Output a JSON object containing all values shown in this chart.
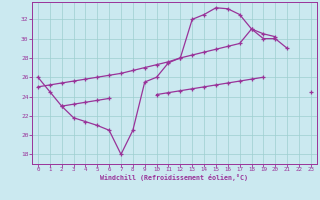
{
  "bg_color": "#cbe9f0",
  "grid_color": "#9ecfcf",
  "line_color": "#993399",
  "xlabel": "Windchill (Refroidissement éolien,°C)",
  "yticks": [
    18,
    20,
    22,
    24,
    26,
    28,
    30,
    32
  ],
  "xlim": [
    -0.5,
    23.5
  ],
  "ylim": [
    17.0,
    33.8
  ],
  "wc_main": [
    26.0,
    24.5,
    23.0,
    21.8,
    21.4,
    21.0,
    20.5,
    18.0,
    20.5,
    25.5,
    26.0,
    27.5,
    28.0,
    32.0,
    32.5,
    33.2,
    33.1,
    32.5,
    31.0,
    30.0,
    30.0,
    29.0,
    null,
    null
  ],
  "wc_upper": [
    25.0,
    25.2,
    25.4,
    25.6,
    25.8,
    26.0,
    26.2,
    26.4,
    26.7,
    27.0,
    27.3,
    27.6,
    28.0,
    28.3,
    28.6,
    28.9,
    29.2,
    29.5,
    31.0,
    30.5,
    30.2,
    null,
    null,
    null
  ],
  "wc_lower": [
    null,
    null,
    23.0,
    23.2,
    23.4,
    23.6,
    23.8,
    null,
    null,
    null,
    24.2,
    24.4,
    24.6,
    24.8,
    25.0,
    25.2,
    25.4,
    25.6,
    25.8,
    26.0,
    null,
    null,
    null,
    24.5
  ]
}
